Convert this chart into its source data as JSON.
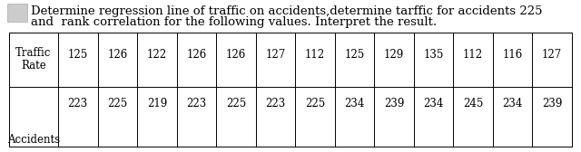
{
  "title_line1": "Determine regression line of traffic on accidents,determine tarffic for accidents 225",
  "title_line2": "and  rank correlation for the following values. Interpret the result.",
  "row1_label_line1": "Traffic",
  "row1_label_line2": "Rate",
  "row2_label": "Accidents",
  "traffic": [
    125,
    126,
    122,
    126,
    126,
    127,
    112,
    125,
    129,
    135,
    112,
    116,
    127
  ],
  "accidents": [
    223,
    225,
    219,
    223,
    225,
    223,
    225,
    234,
    239,
    234,
    245,
    234,
    239
  ],
  "bg_color": "#ffffff",
  "text_color": "#000000",
  "table_border_color": "#000000",
  "font_size_title": 9.5,
  "font_size_table": 8.5,
  "square_color": "#cccccc",
  "square_edge": "#aaaaaa"
}
